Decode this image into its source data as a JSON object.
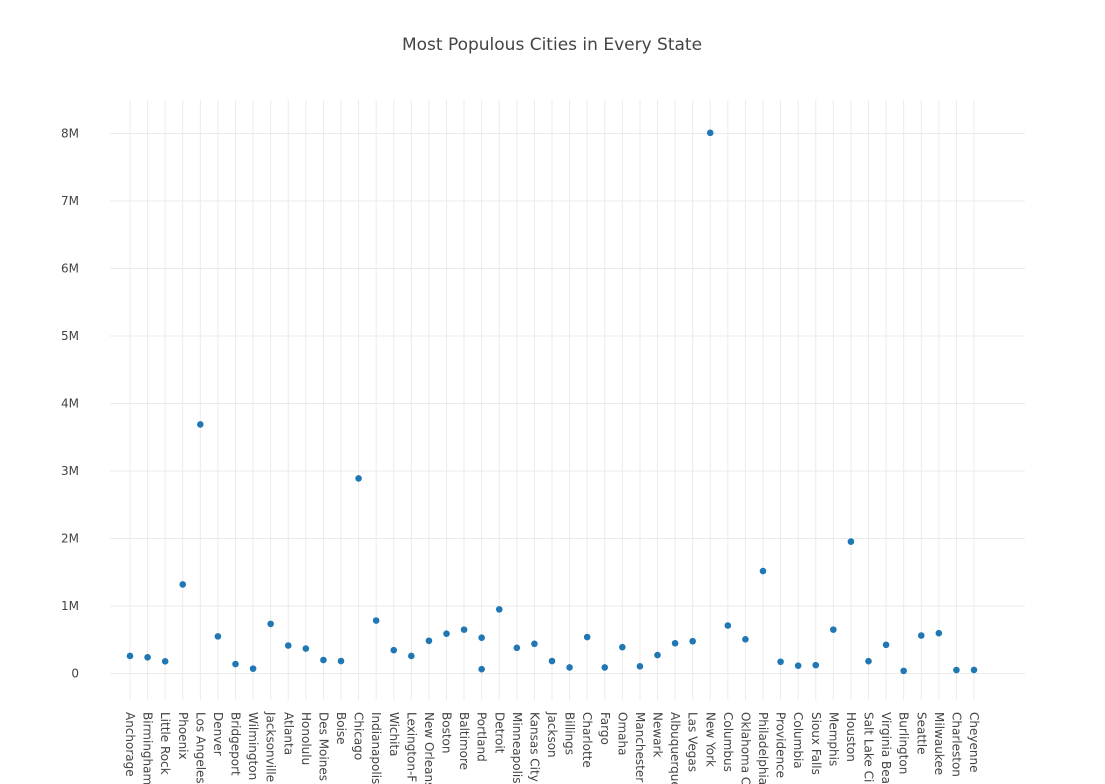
{
  "chart_data": {
    "type": "scatter",
    "title": "Most Populous Cities in Every State",
    "xlabel": "",
    "ylabel": "",
    "ylim": [
      -400000,
      8500000
    ],
    "y_ticks": [
      {
        "value": 0,
        "label": "0"
      },
      {
        "value": 1000000,
        "label": "1M"
      },
      {
        "value": 2000000,
        "label": "2M"
      },
      {
        "value": 3000000,
        "label": "3M"
      },
      {
        "value": 4000000,
        "label": "4M"
      },
      {
        "value": 5000000,
        "label": "5M"
      },
      {
        "value": 6000000,
        "label": "6M"
      },
      {
        "value": 7000000,
        "label": "7M"
      },
      {
        "value": 8000000,
        "label": "8M"
      }
    ],
    "grid": true,
    "legend": "none",
    "marker_color": "#1f77b4",
    "categories": [
      "Anchorage",
      "Birmingham",
      "Little Rock",
      "Phoenix",
      "Los Angeles",
      "Denver",
      "Bridgeport",
      "Wilmington",
      "Jacksonville",
      "Atlanta",
      "Honolulu",
      "Des Moines",
      "Boise",
      "Chicago",
      "Indianapolis",
      "Wichita",
      "Lexington-F",
      "New Orleans",
      "Boston",
      "Baltimore",
      "Portland",
      "Detroit",
      "Minneapolis",
      "Kansas City",
      "Jackson",
      "Billings",
      "Charlotte",
      "Fargo",
      "Omaha",
      "Manchester",
      "Newark",
      "Albuquerque",
      "Las Vegas",
      "New York",
      "Columbus",
      "Oklahoma City",
      "Philadelphia",
      "Providence",
      "Columbia",
      "Sioux Falls",
      "Memphis",
      "Houston",
      "Salt Lake City",
      "Virginia Beach",
      "Burlington",
      "Seattle",
      "Milwaukee",
      "Charleston",
      "Cheyenne"
    ],
    "tick_labels": [
      "Anchorage",
      "Birmingham",
      "Little Rock",
      "Phoenix",
      "Los Angeles",
      "Denver",
      "Bridgeport",
      "Wilmington",
      "Jacksonville",
      "Atlanta",
      "Honolulu",
      "Des Moines",
      "Boise",
      "Chicago",
      "Indianapolis",
      "Wichita",
      "Lexington-F",
      "New Orleans",
      "Boston",
      "Baltimore",
      "Portland",
      "Detroit",
      "Minneapolis",
      "Kansas City",
      "Jackson",
      "Billings",
      "Charlotte",
      "Fargo",
      "Omaha",
      "Manchester",
      "Newark",
      "Albuquerque",
      "Las Vegas",
      "New York",
      "Columbus",
      "Oklahoma C",
      "Philadelphia",
      "Providence",
      "Columbia",
      "Sioux Falls",
      "Memphis",
      "Houston",
      "Salt Lake Ci",
      "Virginia Bea",
      "Burlington",
      "Seattle",
      "Milwaukee",
      "Charleston",
      "Cheyenne"
    ],
    "points": [
      {
        "x": "Anchorage",
        "y": 260000
      },
      {
        "x": "Birmingham",
        "y": 240000
      },
      {
        "x": "Little Rock",
        "y": 180000
      },
      {
        "x": "Phoenix",
        "y": 1320000
      },
      {
        "x": "Los Angeles",
        "y": 3690000
      },
      {
        "x": "Denver",
        "y": 550000
      },
      {
        "x": "Bridgeport",
        "y": 140000
      },
      {
        "x": "Wilmington",
        "y": 72000
      },
      {
        "x": "Jacksonville",
        "y": 735000
      },
      {
        "x": "Atlanta",
        "y": 415000
      },
      {
        "x": "Honolulu",
        "y": 370000
      },
      {
        "x": "Des Moines",
        "y": 200000
      },
      {
        "x": "Boise",
        "y": 185000
      },
      {
        "x": "Chicago",
        "y": 2890000
      },
      {
        "x": "Indianapolis",
        "y": 785000
      },
      {
        "x": "Wichita",
        "y": 345000
      },
      {
        "x": "Lexington-F",
        "y": 260000
      },
      {
        "x": "New Orleans",
        "y": 485000
      },
      {
        "x": "Boston",
        "y": 590000
      },
      {
        "x": "Baltimore",
        "y": 650000
      },
      {
        "x": "Portland",
        "y": 530000
      },
      {
        "x": "Portland",
        "y": 64000
      },
      {
        "x": "Detroit",
        "y": 950000
      },
      {
        "x": "Minneapolis",
        "y": 380000
      },
      {
        "x": "Kansas City",
        "y": 440000
      },
      {
        "x": "Jackson",
        "y": 185000
      },
      {
        "x": "Billings",
        "y": 90000
      },
      {
        "x": "Charlotte",
        "y": 540000
      },
      {
        "x": "Fargo",
        "y": 90000
      },
      {
        "x": "Omaha",
        "y": 390000
      },
      {
        "x": "Manchester",
        "y": 107000
      },
      {
        "x": "Newark",
        "y": 273000
      },
      {
        "x": "Albuquerque",
        "y": 448000
      },
      {
        "x": "Las Vegas",
        "y": 478000
      },
      {
        "x": "New York",
        "y": 8010000
      },
      {
        "x": "Columbus",
        "y": 711000
      },
      {
        "x": "Oklahoma City",
        "y": 506000
      },
      {
        "x": "Philadelphia",
        "y": 1518000
      },
      {
        "x": "Providence",
        "y": 174000
      },
      {
        "x": "Columbia",
        "y": 116000
      },
      {
        "x": "Sioux Falls",
        "y": 124000
      },
      {
        "x": "Memphis",
        "y": 650000
      },
      {
        "x": "Houston",
        "y": 1954000
      },
      {
        "x": "Salt Lake City",
        "y": 182000
      },
      {
        "x": "Virginia Beach",
        "y": 425000
      },
      {
        "x": "Burlington",
        "y": 39000
      },
      {
        "x": "Seattle",
        "y": 563000
      },
      {
        "x": "Milwaukee",
        "y": 597000
      },
      {
        "x": "Charleston",
        "y": 51000
      },
      {
        "x": "Cheyenne",
        "y": 53000
      }
    ]
  }
}
